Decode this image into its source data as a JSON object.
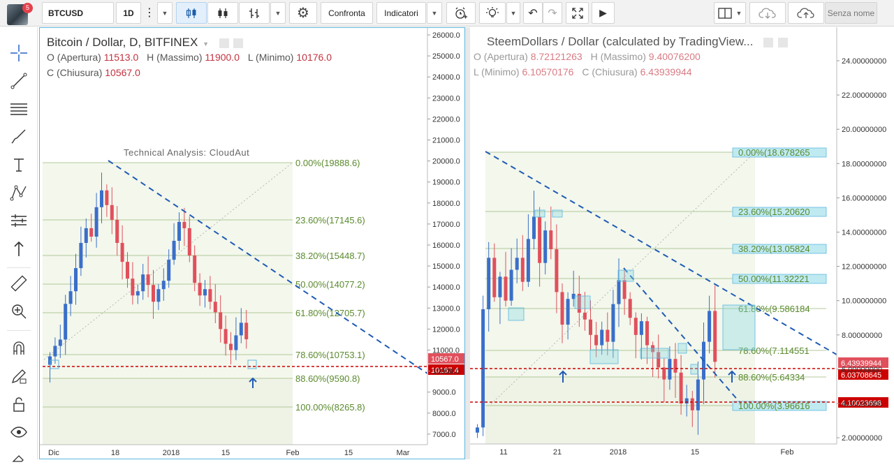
{
  "toolbar": {
    "symbol": "BTCUSD",
    "interval": "1D",
    "compare_label": "Confronta",
    "indicators_label": "Indicatori",
    "layout_name": "Senza nome",
    "notification_count": "5"
  },
  "left_chart": {
    "title": "Bitcoin / Dollar, D, BITFINEX",
    "ohlc": [
      {
        "label": "O (Apertura)",
        "value": "11513.0"
      },
      {
        "label": "H (Massimo)",
        "value": "11900.0"
      },
      {
        "label": "L (Minimo)",
        "value": "10176.0"
      },
      {
        "label": "C (Chiusura)",
        "value": "10567.0"
      }
    ],
    "watermark": "Technical Analysis: CloudAut",
    "price_ticks": [
      "26000.0",
      "25000.0",
      "24000.0",
      "23000.0",
      "22000.0",
      "21000.0",
      "20000.0",
      "19000.0",
      "18000.0",
      "17000.0",
      "16000.0",
      "15000.0",
      "14000.0",
      "13000.0",
      "12000.0",
      "11000.0",
      "10000.0",
      "9000.0",
      "8000.0",
      "7000.0"
    ],
    "time_ticks": [
      "Dic",
      "18",
      "2018",
      "15",
      "Feb",
      "15",
      "Mar"
    ],
    "fib_levels": [
      "0.00%(19888.6)",
      "23.60%(17145.6)",
      "38.20%(15448.7)",
      "50.00%(14077.2)",
      "61.80%(12705.7)",
      "78.60%(10753.1)",
      "88.60%(9590.8)",
      "100.00%(8265.8)"
    ],
    "price_labels": [
      {
        "text": "10567.0",
        "color": "#e0505c"
      },
      {
        "text": "10167.4",
        "color": "#cc0000"
      }
    ]
  },
  "right_chart": {
    "title": "SteemDollars / Dollar (calculated by TradingView...",
    "ohlc": [
      {
        "label": "O (Apertura)",
        "value": "8.72121263"
      },
      {
        "label": "H (Massimo)",
        "value": "9.40076200"
      },
      {
        "label": "L (Minimo)",
        "value": "6.10570176"
      },
      {
        "label": "C (Chiusura)",
        "value": "6.43939944"
      }
    ],
    "price_ticks": [
      "24.00000000",
      "22.00000000",
      "20.00000000",
      "18.00000000",
      "16.00000000",
      "14.00000000",
      "12.00000000",
      "10.00000000",
      "8.00000000",
      "6.00000000",
      "4.00000000",
      "2.00000000"
    ],
    "time_ticks": [
      "11",
      "21",
      "2018",
      "15",
      "Feb"
    ],
    "fib_levels": [
      "0.00%(18.678265",
      "23.60%(15.20620",
      "38.20%(13.05824",
      "50.00%(11.32221",
      "61.80%(9.586184",
      "78.60%(7.114551",
      "88.60%(5.64334",
      "100.00%(3.96616"
    ],
    "price_labels": [
      {
        "text": "6.43939944",
        "color": "#e0505c"
      },
      {
        "text": "6.03708645",
        "color": "#cc0000"
      },
      {
        "text": "4.10023698",
        "color": "#cc0000"
      }
    ]
  },
  "colors": {
    "up": "#3a6fc9",
    "down": "#e0505c",
    "fib_text": "#5a8a2e",
    "trend": "#1f5bb5",
    "support": "#cc0000"
  }
}
